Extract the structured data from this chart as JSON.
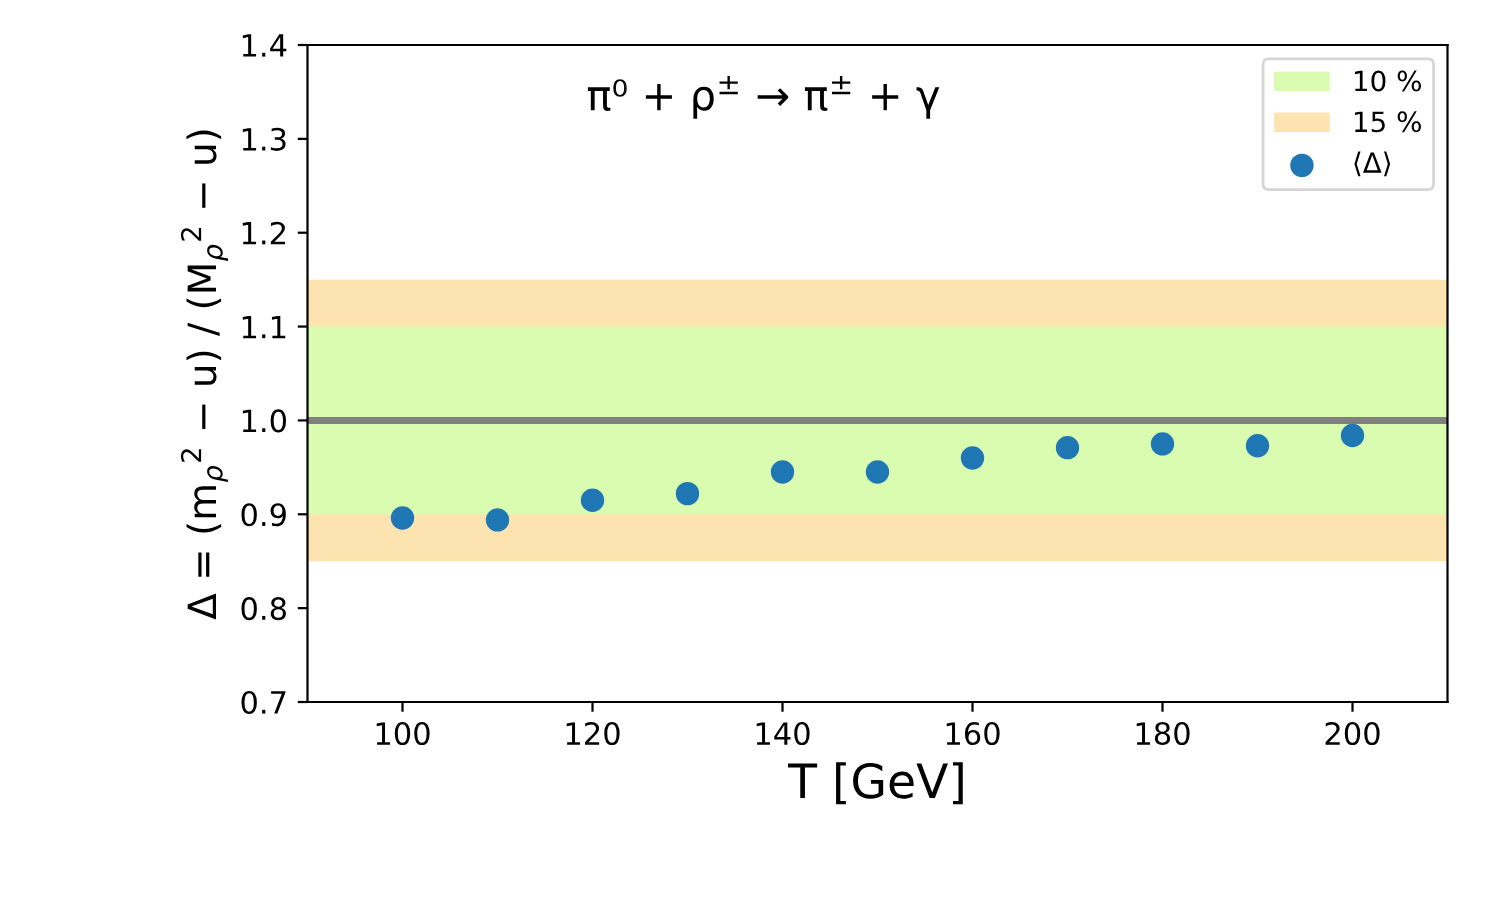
{
  "chart_data": {
    "type": "scatter",
    "xlabel": "T [GeV]",
    "ylabel": "Δ = (m$_{ρ}$$^{2}$ − u) / (M$_{ρ}$$^{2}$ − u)",
    "annotations": [
      "π⁰ + ρ$^{±}$ → π$^{±}$ + γ"
    ],
    "x": [
      100,
      110,
      120,
      130,
      140,
      150,
      160,
      170,
      180,
      190,
      200
    ],
    "series": [
      {
        "name": "⟨Δ⟩",
        "color": "#1f77b4",
        "values": [
          0.896,
          0.894,
          0.915,
          0.922,
          0.945,
          0.945,
          0.96,
          0.971,
          0.975,
          0.973,
          0.984
        ]
      }
    ],
    "bands": [
      {
        "axis": "y",
        "from": 0.9,
        "to": 1.1,
        "label": "10 %",
        "color": "#d9fcb0"
      },
      {
        "axis": "y",
        "from": 0.85,
        "to": 1.15,
        "label": "15 %",
        "color": "#fde3b0"
      }
    ],
    "ref_lines": [
      {
        "axis": "y",
        "value": 1.0,
        "color": "#808080",
        "line_style": "solid"
      }
    ],
    "xlim": [
      90,
      210
    ],
    "xticks": [
      100,
      120,
      140,
      160,
      180,
      200
    ],
    "ylim": [
      0.7,
      1.4
    ],
    "yticks": [
      0.7,
      0.8,
      0.9,
      {
        "value": 1,
        "label": "1.0"
      },
      1.1,
      1.2,
      1.3,
      1.4
    ],
    "marker": "circle",
    "legend": "top right",
    "grid": false
  }
}
